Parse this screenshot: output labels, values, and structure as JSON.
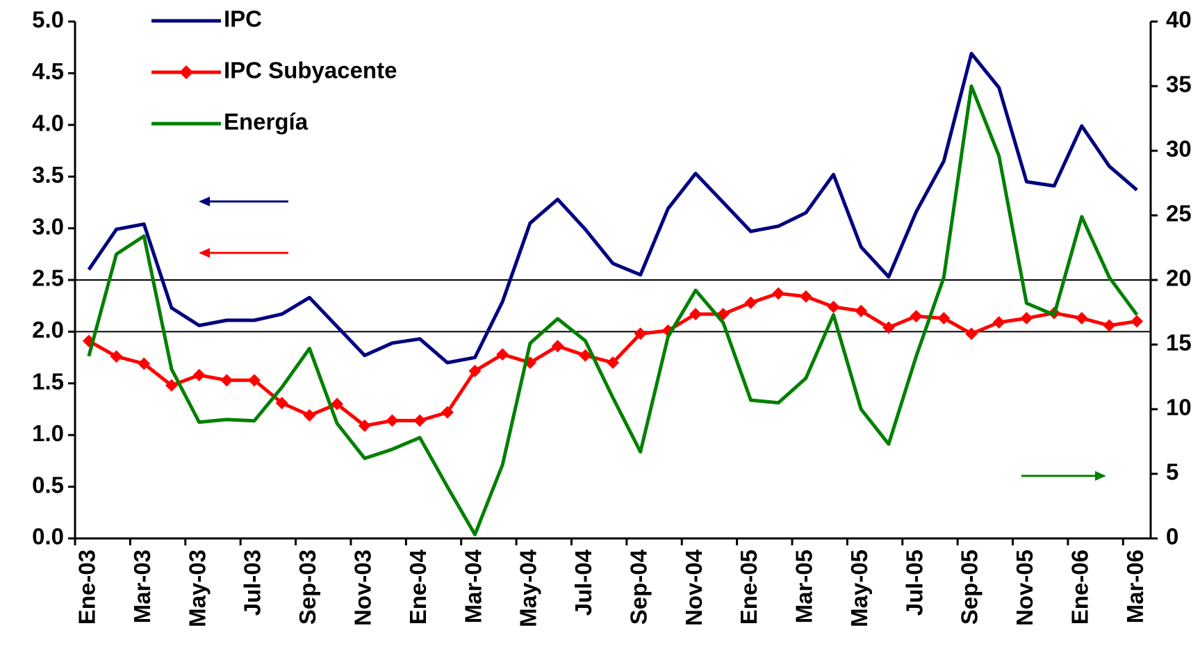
{
  "chart_data": {
    "type": "line",
    "categories": [
      "Ene-03",
      null,
      "Mar-03",
      null,
      "May-03",
      null,
      "Jul-03",
      null,
      "Sep-03",
      null,
      "Nov-03",
      null,
      "Ene-04",
      null,
      "Mar-04",
      null,
      "May-04",
      null,
      "Jul-04",
      null,
      "Sep-04",
      null,
      "Nov-04",
      null,
      "Ene-05",
      null,
      "Mar-05",
      null,
      "May-05",
      null,
      "Jul-05",
      null,
      "Sep-05",
      null,
      "Nov-05",
      null,
      "Ene-06",
      null,
      "Mar-06"
    ],
    "series": [
      {
        "name": "IPC",
        "color": "#000080",
        "values": [
          2.6,
          2.99,
          3.04,
          2.23,
          2.06,
          2.11,
          2.11,
          2.17,
          2.33,
          2.05,
          1.77,
          1.89,
          1.93,
          1.7,
          1.75,
          2.29,
          3.05,
          3.28,
          2.99,
          2.66,
          2.55,
          3.19,
          3.53,
          3.25,
          2.97,
          3.02,
          3.15,
          3.52,
          2.82,
          2.53,
          3.16,
          3.65,
          4.69,
          4.36,
          3.45,
          3.41,
          3.99,
          3.6,
          3.37
        ]
      },
      {
        "name": "IPC Subyacente",
        "color": "#ff0000",
        "marker": "diamond",
        "values": [
          1.91,
          1.76,
          1.69,
          1.48,
          1.58,
          1.53,
          1.53,
          1.31,
          1.19,
          1.3,
          1.09,
          1.14,
          1.14,
          1.22,
          1.62,
          1.78,
          1.7,
          1.86,
          1.77,
          1.7,
          1.98,
          2.01,
          2.17,
          2.17,
          2.28,
          2.37,
          2.34,
          2.24,
          2.2,
          2.04,
          2.15,
          2.13,
          1.98,
          2.09,
          2.13,
          2.18,
          2.13,
          2.06,
          2.1
        ]
      },
      {
        "name": "Energía",
        "color": "#008000",
        "axis": "y2",
        "values": [
          14.1,
          22.0,
          23.4,
          13.1,
          9.0,
          9.2,
          9.1,
          11.7,
          14.7,
          8.9,
          6.2,
          6.9,
          7.8,
          4.0,
          0.3,
          5.7,
          15.1,
          17.0,
          15.3,
          10.9,
          6.7,
          15.6,
          19.2,
          16.7,
          10.7,
          10.5,
          12.4,
          17.3,
          10.0,
          7.3,
          14.1,
          20.2,
          35.0,
          29.6,
          18.2,
          17.3,
          24.9,
          20.2,
          17.3
        ]
      }
    ],
    "ylim": [
      0,
      5
    ],
    "yticks": [
      {
        "value": 0,
        "label": "0.0"
      },
      0.5,
      {
        "value": 1,
        "label": "1.0"
      },
      1.5,
      {
        "value": 2,
        "label": "2.0"
      },
      2.5,
      {
        "value": 3,
        "label": "3.0"
      },
      3.5,
      {
        "value": 4,
        "label": "4.0"
      },
      4.5,
      {
        "value": 5,
        "label": "5.0"
      }
    ],
    "y2lim": [
      0,
      40
    ],
    "y2ticks": [
      0,
      5,
      10,
      15,
      20,
      25,
      30,
      35,
      40
    ],
    "hlines": [
      2,
      2.5
    ],
    "legend": "top-left"
  }
}
